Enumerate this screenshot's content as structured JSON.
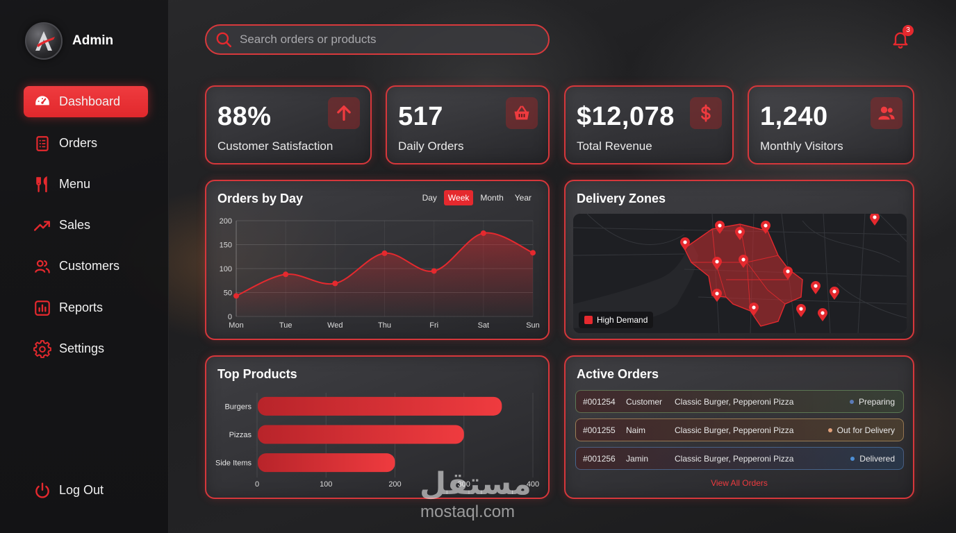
{
  "sidebar": {
    "user": {
      "name": "Admin"
    },
    "items": [
      {
        "label": "Dashboard",
        "icon": "dashboard-icon",
        "active": true
      },
      {
        "label": "Orders",
        "icon": "orders-icon"
      },
      {
        "label": "Menu",
        "icon": "utensils-icon"
      },
      {
        "label": "Sales",
        "icon": "trending-up-icon"
      },
      {
        "label": "Customers",
        "icon": "users-icon"
      },
      {
        "label": "Reports",
        "icon": "chart-icon"
      },
      {
        "label": "Settings",
        "icon": "gear-icon"
      }
    ],
    "logout_label": "Log Out"
  },
  "search": {
    "placeholder": "Search orders or products"
  },
  "notifications": {
    "count": "3"
  },
  "stats": [
    {
      "value": "88%",
      "label": "Customer Satisfaction",
      "icon": "arrow-up-icon"
    },
    {
      "value": "517",
      "label": "Daily Orders",
      "icon": "basket-icon"
    },
    {
      "value": "$12,078",
      "label": "Total Revenue",
      "icon": "dollar-icon"
    },
    {
      "value": "1,240",
      "label": "Monthly Visitors",
      "icon": "visitors-icon"
    }
  ],
  "orders_chart": {
    "title": "Orders by Day",
    "periods": [
      "Day",
      "Week",
      "Month",
      "Year"
    ],
    "active_period": "Week"
  },
  "delivery": {
    "title": "Delivery Zones",
    "legend": "High Demand"
  },
  "top_products": {
    "title": "Top Products"
  },
  "active_orders": {
    "title": "Active Orders",
    "rows": [
      {
        "id": "#001254",
        "customer": "Customer",
        "items": "Classic Burger, Pepperoni Pizza",
        "status": "Preparing",
        "status_color": "#5b7bb8"
      },
      {
        "id": "#001255",
        "customer": "Naim",
        "items": "Classic Burger, Pepperoni Pizza",
        "status": "Out for Delivery",
        "status_color": "#e0a07a"
      },
      {
        "id": "#001256",
        "customer": "Jamin",
        "items": "Classic Burger, Pepperoni Pizza",
        "status": "Delivered",
        "status_color": "#4d8fd6"
      }
    ],
    "view_all": "View All Orders"
  },
  "watermark": {
    "arabic": "مستقل",
    "latin": "mostaql.com"
  },
  "colors": {
    "accent": "#e5292e",
    "panel_border": "#d6373b"
  },
  "chart_data": [
    {
      "type": "line",
      "categories": [
        "Mon",
        "Tue",
        "Wed",
        "Thu",
        "Fri",
        "Sat",
        "Sun"
      ],
      "values": [
        43,
        88,
        69,
        132,
        95,
        174,
        133
      ],
      "ylim": [
        0,
        200
      ],
      "yticks": [
        0,
        50,
        100,
        150,
        200
      ],
      "grid": true
    },
    {
      "type": "bar",
      "orientation": "horizontal",
      "categories": [
        "Burgers",
        "Pizzas",
        "Side Items"
      ],
      "values": [
        355,
        300,
        200
      ],
      "xlim": [
        0,
        400
      ],
      "xticks": [
        0,
        100,
        200,
        300,
        400
      ],
      "grid": true
    }
  ]
}
